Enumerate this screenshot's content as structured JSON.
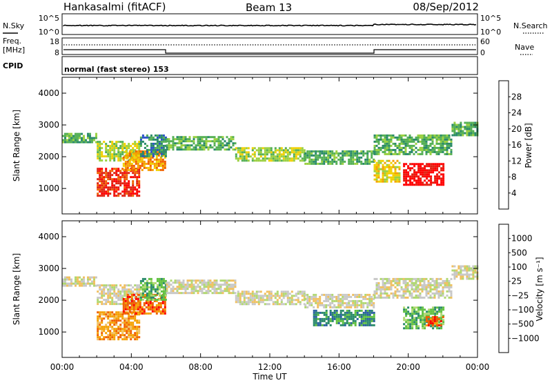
{
  "header": {
    "station": "Hankasalmi (fitACF)",
    "beam": "Beam 13",
    "date": "08/Sep/2012"
  },
  "top_panel": {
    "left_label": "N.Sky",
    "right_label": "N.Search",
    "left_ticks": [
      "10^5",
      "10^0"
    ],
    "right_ticks": [
      "10^5",
      "10^0"
    ]
  },
  "freq_panel": {
    "left_label_1": "Freq.",
    "left_label_2": "[MHz]",
    "right_label": "Nave",
    "left_ticks": [
      "18",
      "8"
    ],
    "right_ticks": [
      "60",
      "0"
    ]
  },
  "cpid": {
    "label": "CPID",
    "mode": "normal (fast stereo) 153"
  },
  "chart_data": [
    {
      "type": "heatmap",
      "name": "power",
      "ylabel": "Slant Range [km]",
      "xlabel": "",
      "x_ticks": [
        "00:00",
        "04:00",
        "08:00",
        "12:00",
        "16:00",
        "20:00",
        "00:00"
      ],
      "x_range_hours": [
        0,
        24
      ],
      "ylim": [
        200,
        4500
      ],
      "y_ticks": [
        1000,
        2000,
        3000,
        4000
      ],
      "colorbar": {
        "label": "Power [dB]",
        "ticks": [
          "4",
          "8",
          "12",
          "16",
          "20",
          "24",
          "28"
        ],
        "colors": [
          "#1a1aff",
          "#2a52c8",
          "#2a8a6a",
          "#55b055",
          "#9ad040",
          "#f0d000",
          "#f5a000",
          "#f06000",
          "#e02010",
          "#ff0000"
        ]
      },
      "regions": [
        {
          "t0": 0.0,
          "t1": 2.0,
          "r0": 2450,
          "r1": 2750,
          "level": 3
        },
        {
          "t0": 2.0,
          "t1": 4.5,
          "r0": 1900,
          "r1": 2500,
          "level": 4
        },
        {
          "t0": 2.0,
          "t1": 4.5,
          "r0": 800,
          "r1": 1650,
          "level": 8
        },
        {
          "t0": 3.5,
          "t1": 6.0,
          "r0": 1600,
          "r1": 2200,
          "level": 6
        },
        {
          "t0": 4.5,
          "t1": 6.0,
          "r0": 2000,
          "r1": 2700,
          "level": 2
        },
        {
          "t0": 6.0,
          "t1": 10.0,
          "r0": 2200,
          "r1": 2650,
          "level": 3
        },
        {
          "t0": 10.0,
          "t1": 14.0,
          "r0": 1900,
          "r1": 2300,
          "level": 4
        },
        {
          "t0": 14.0,
          "t1": 18.0,
          "r0": 1800,
          "r1": 2200,
          "level": 3
        },
        {
          "t0": 18.0,
          "t1": 22.5,
          "r0": 2100,
          "r1": 2700,
          "level": 3
        },
        {
          "t0": 18.0,
          "t1": 19.5,
          "r0": 1200,
          "r1": 1900,
          "level": 5
        },
        {
          "t0": 19.7,
          "t1": 22.0,
          "r0": 1100,
          "r1": 1800,
          "level": 9
        },
        {
          "t0": 22.5,
          "t1": 24.0,
          "r0": 2700,
          "r1": 3100,
          "level": 3
        }
      ]
    },
    {
      "type": "heatmap",
      "name": "velocity",
      "ylabel": "Slant Range [km]",
      "xlabel": "Time UT",
      "x_ticks": [
        "00:00",
        "04:00",
        "08:00",
        "12:00",
        "16:00",
        "20:00",
        "00:00"
      ],
      "x_range_hours": [
        0,
        24
      ],
      "ylim": [
        200,
        4500
      ],
      "y_ticks": [
        1000,
        2000,
        3000,
        4000
      ],
      "colorbar": {
        "label": "Velocity [m s⁻¹]",
        "ticks": [
          "1000",
          "500",
          "100",
          "25",
          "−25",
          "−100",
          "−500",
          "−1000"
        ],
        "colors": [
          "#1a3ad0",
          "#2a60a0",
          "#2a8a6a",
          "#60c040",
          "#b0d870",
          "#c8c8c8",
          "#f0c060",
          "#f5a000",
          "#f06000",
          "#ff0000"
        ]
      },
      "regions": [
        {
          "t0": 0.0,
          "t1": 2.0,
          "r0": 2450,
          "r1": 2750,
          "level": 5
        },
        {
          "t0": 2.0,
          "t1": 4.5,
          "r0": 1900,
          "r1": 2500,
          "level": 5
        },
        {
          "t0": 2.0,
          "t1": 4.5,
          "r0": 800,
          "r1": 1650,
          "level": 7
        },
        {
          "t0": 3.5,
          "t1": 6.0,
          "r0": 1600,
          "r1": 2200,
          "level": 8
        },
        {
          "t0": 4.5,
          "t1": 6.0,
          "r0": 2000,
          "r1": 2700,
          "level": 3
        },
        {
          "t0": 6.0,
          "t1": 10.0,
          "r0": 2200,
          "r1": 2650,
          "level": 5
        },
        {
          "t0": 10.0,
          "t1": 14.0,
          "r0": 1900,
          "r1": 2300,
          "level": 5
        },
        {
          "t0": 14.0,
          "t1": 18.0,
          "r0": 1800,
          "r1": 2200,
          "level": 5
        },
        {
          "t0": 14.5,
          "t1": 18.0,
          "r0": 1200,
          "r1": 1700,
          "level": 2
        },
        {
          "t0": 18.0,
          "t1": 22.5,
          "r0": 2100,
          "r1": 2700,
          "level": 5
        },
        {
          "t0": 19.7,
          "t1": 22.0,
          "r0": 1100,
          "r1": 1800,
          "level": 3
        },
        {
          "t0": 21.0,
          "t1": 22.0,
          "r0": 1200,
          "r1": 1500,
          "level": 8
        },
        {
          "t0": 22.5,
          "t1": 24.0,
          "r0": 2700,
          "r1": 3100,
          "level": 5
        }
      ]
    }
  ]
}
